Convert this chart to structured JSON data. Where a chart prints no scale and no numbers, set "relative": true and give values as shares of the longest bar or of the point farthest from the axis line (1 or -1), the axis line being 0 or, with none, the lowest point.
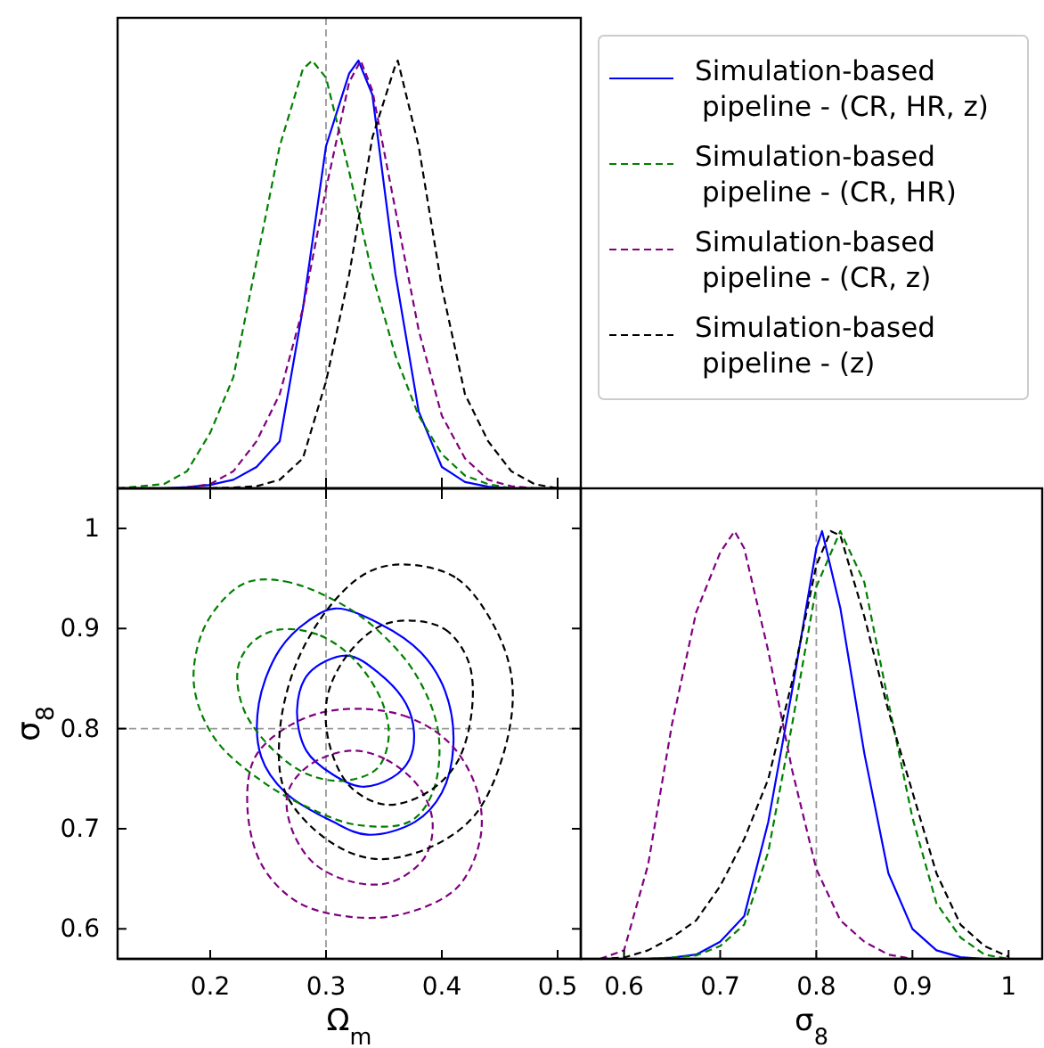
{
  "chart_data": [
    {
      "type": "line",
      "relative": true,
      "xlim": [
        0.12,
        0.52
      ],
      "xticks": [
        0.2,
        0.3,
        0.4,
        0.5
      ],
      "tick_labels": false,
      "legend": "right",
      "line_style": "dashed",
      "ref_lines": [
        {
          "axis": "x",
          "value": 0.3,
          "color": "#999999",
          "line_style": "dashed"
        }
      ],
      "series": [
        {
          "name": "Simulation-based pipeline - (CR, HR, z)",
          "color": "#0000ff",
          "line_style": "solid",
          "x": [
            0.14,
            0.16,
            0.18,
            0.2,
            0.22,
            0.24,
            0.26,
            0.28,
            0.3,
            0.32,
            0.328,
            0.34,
            0.36,
            0.38,
            0.4,
            0.42,
            0.44,
            0.46
          ],
          "values": [
            0,
            0,
            0.003,
            0.008,
            0.02,
            0.05,
            0.11,
            0.42,
            0.8,
            0.97,
            1,
            0.92,
            0.5,
            0.18,
            0.05,
            0.015,
            0.004,
            0
          ]
        },
        {
          "name": "Simulation-based pipeline - (CR, HR)",
          "color": "#008000",
          "x": [
            0.12,
            0.14,
            0.16,
            0.18,
            0.2,
            0.22,
            0.24,
            0.26,
            0.28,
            0.288,
            0.3,
            0.32,
            0.34,
            0.36,
            0.38,
            0.4,
            0.42,
            0.44,
            0.46
          ],
          "values": [
            0,
            0.005,
            0.01,
            0.04,
            0.13,
            0.26,
            0.53,
            0.8,
            0.98,
            1,
            0.96,
            0.74,
            0.5,
            0.31,
            0.17,
            0.08,
            0.03,
            0.01,
            0
          ]
        },
        {
          "name": "Simulation-based pipeline - (CR, z)",
          "color": "#800080",
          "x": [
            0.18,
            0.2,
            0.22,
            0.24,
            0.26,
            0.28,
            0.3,
            0.32,
            0.33,
            0.34,
            0.36,
            0.38,
            0.4,
            0.42,
            0.44,
            0.46,
            0.48
          ],
          "values": [
            0.002,
            0.01,
            0.04,
            0.11,
            0.22,
            0.42,
            0.7,
            0.95,
            1,
            0.93,
            0.65,
            0.37,
            0.17,
            0.07,
            0.02,
            0.005,
            0
          ]
        },
        {
          "name": "Simulation-based pipeline - (z)",
          "color": "#000000",
          "x": [
            0.2,
            0.22,
            0.24,
            0.26,
            0.28,
            0.3,
            0.32,
            0.34,
            0.36,
            0.362,
            0.38,
            0.4,
            0.42,
            0.44,
            0.46,
            0.48,
            0.5
          ],
          "values": [
            0,
            0.002,
            0.005,
            0.02,
            0.07,
            0.25,
            0.5,
            0.82,
            0.99,
            1,
            0.8,
            0.47,
            0.22,
            0.11,
            0.04,
            0.01,
            0
          ]
        }
      ]
    },
    {
      "type": "line",
      "xlim": [
        0.12,
        0.52
      ],
      "ylim": [
        0.57,
        1.04
      ],
      "xticks": [
        0.2,
        0.3,
        0.4,
        0.5
      ],
      "yticks": [
        0.6,
        0.7,
        0.8,
        0.9,
        1.0
      ],
      "xlabel": "Ω$_{m}$",
      "ylabel": "σ$_{8}$",
      "ref_lines": [
        {
          "axis": "x",
          "value": 0.3,
          "color": "#999999",
          "line_style": "dashed"
        },
        {
          "axis": "y",
          "value": 0.8,
          "color": "#999999",
          "line_style": "dashed"
        }
      ]
    },
    {
      "type": "line",
      "relative": true,
      "xlim": [
        0.555,
        1.035
      ],
      "xticks": [
        0.6,
        0.7,
        0.8,
        0.9,
        1.0
      ],
      "tick_labels": "x",
      "xlabel": "σ$_{8}$",
      "line_style": "dashed",
      "ref_lines": [
        {
          "axis": "x",
          "value": 0.8,
          "color": "#999999",
          "line_style": "dashed"
        }
      ],
      "series": [
        {
          "color": "#0000ff",
          "line_style": "solid",
          "x": [
            0.625,
            0.65,
            0.675,
            0.7,
            0.725,
            0.75,
            0.775,
            0.8,
            0.806,
            0.825,
            0.85,
            0.875,
            0.9,
            0.925,
            0.95,
            0.975
          ],
          "values": [
            0,
            0.003,
            0.01,
            0.04,
            0.1,
            0.32,
            0.63,
            0.96,
            1,
            0.82,
            0.48,
            0.2,
            0.07,
            0.02,
            0.004,
            0
          ]
        },
        {
          "color": "#008000",
          "x": [
            0.625,
            0.65,
            0.675,
            0.7,
            0.725,
            0.75,
            0.775,
            0.8,
            0.825,
            0.85,
            0.875,
            0.9,
            0.925,
            0.95,
            0.975,
            1.0
          ],
          "values": [
            0,
            0.003,
            0.008,
            0.03,
            0.08,
            0.25,
            0.55,
            0.87,
            1,
            0.88,
            0.6,
            0.33,
            0.13,
            0.05,
            0.01,
            0
          ]
        },
        {
          "color": "#800080",
          "x": [
            0.575,
            0.6,
            0.625,
            0.65,
            0.675,
            0.7,
            0.715,
            0.725,
            0.75,
            0.775,
            0.8,
            0.825,
            0.85,
            0.875,
            0.9
          ],
          "values": [
            0,
            0.02,
            0.22,
            0.55,
            0.81,
            0.95,
            1,
            0.96,
            0.72,
            0.44,
            0.21,
            0.09,
            0.04,
            0.01,
            0
          ]
        },
        {
          "color": "#000000",
          "x": [
            0.575,
            0.6,
            0.625,
            0.65,
            0.675,
            0.7,
            0.725,
            0.75,
            0.775,
            0.8,
            0.815,
            0.825,
            0.85,
            0.875,
            0.9,
            0.925,
            0.95,
            0.975,
            1.0
          ],
          "values": [
            0,
            0.003,
            0.02,
            0.05,
            0.09,
            0.17,
            0.28,
            0.42,
            0.65,
            0.92,
            1,
            0.99,
            0.8,
            0.58,
            0.39,
            0.2,
            0.08,
            0.03,
            0.005
          ]
        }
      ]
    }
  ]
}
